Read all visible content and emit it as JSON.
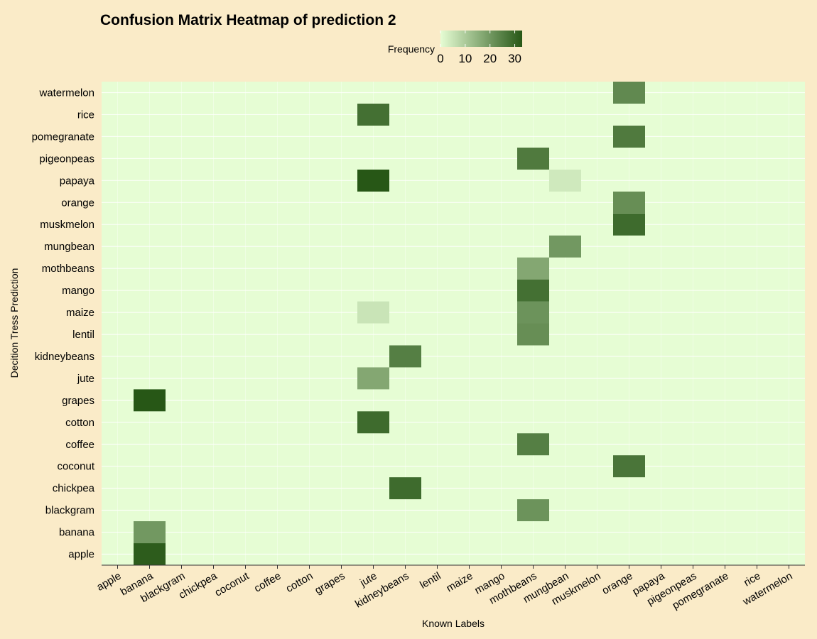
{
  "chart_data": {
    "type": "heatmap",
    "title": "Confusion Matrix Heatmap of prediction 2",
    "xlabel": "Known Labels",
    "ylabel": "Decition Tress Prediction",
    "x_categories": [
      "apple",
      "banana",
      "blackgram",
      "chickpea",
      "coconut",
      "coffee",
      "cotton",
      "grapes",
      "jute",
      "kidneybeans",
      "lentil",
      "maize",
      "mango",
      "mothbeans",
      "mungbean",
      "muskmelon",
      "orange",
      "papaya",
      "pigeonpeas",
      "pomegranate",
      "rice",
      "watermelon"
    ],
    "y_categories": [
      "apple",
      "banana",
      "blackgram",
      "chickpea",
      "coconut",
      "coffee",
      "cotton",
      "grapes",
      "jute",
      "kidneybeans",
      "lentil",
      "maize",
      "mango",
      "mothbeans",
      "mungbean",
      "muskmelon",
      "orange",
      "papaya",
      "pigeonpeas",
      "pomegranate",
      "rice",
      "watermelon"
    ],
    "cells": [
      {
        "x": "banana",
        "y": "apple",
        "value": 32
      },
      {
        "x": "banana",
        "y": "banana",
        "value": 20
      },
      {
        "x": "mothbeans",
        "y": "blackgram",
        "value": 21
      },
      {
        "x": "kidneybeans",
        "y": "chickpea",
        "value": 29
      },
      {
        "x": "orange",
        "y": "coconut",
        "value": 27
      },
      {
        "x": "mothbeans",
        "y": "coffee",
        "value": 25
      },
      {
        "x": "jute",
        "y": "cotton",
        "value": 29
      },
      {
        "x": "banana",
        "y": "grapes",
        "value": 33
      },
      {
        "x": "jute",
        "y": "jute",
        "value": 17
      },
      {
        "x": "kidneybeans",
        "y": "kidneybeans",
        "value": 25
      },
      {
        "x": "mothbeans",
        "y": "lentil",
        "value": 22
      },
      {
        "x": "jute",
        "y": "maize",
        "value": 5
      },
      {
        "x": "mothbeans",
        "y": "maize",
        "value": 21
      },
      {
        "x": "mothbeans",
        "y": "mango",
        "value": 28
      },
      {
        "x": "mothbeans",
        "y": "mothbeans",
        "value": 17
      },
      {
        "x": "mungbean",
        "y": "mungbean",
        "value": 20
      },
      {
        "x": "orange",
        "y": "muskmelon",
        "value": 29
      },
      {
        "x": "orange",
        "y": "orange",
        "value": 22
      },
      {
        "x": "jute",
        "y": "papaya",
        "value": 33
      },
      {
        "x": "mungbean",
        "y": "papaya",
        "value": 4
      },
      {
        "x": "mothbeans",
        "y": "pigeonpeas",
        "value": 26
      },
      {
        "x": "orange",
        "y": "pomegranate",
        "value": 26
      },
      {
        "x": "jute",
        "y": "rice",
        "value": 28
      },
      {
        "x": "orange",
        "y": "watermelon",
        "value": 23
      }
    ],
    "legend": {
      "title": "Frequency",
      "ticks": [
        0,
        10,
        20,
        30
      ],
      "range": [
        0,
        33
      ],
      "position": "top",
      "low_color": "#e6fdd4",
      "high_color": "#275716"
    },
    "background_color": "#faebc8",
    "panel_color": "#e6fdd4",
    "grid": true
  }
}
